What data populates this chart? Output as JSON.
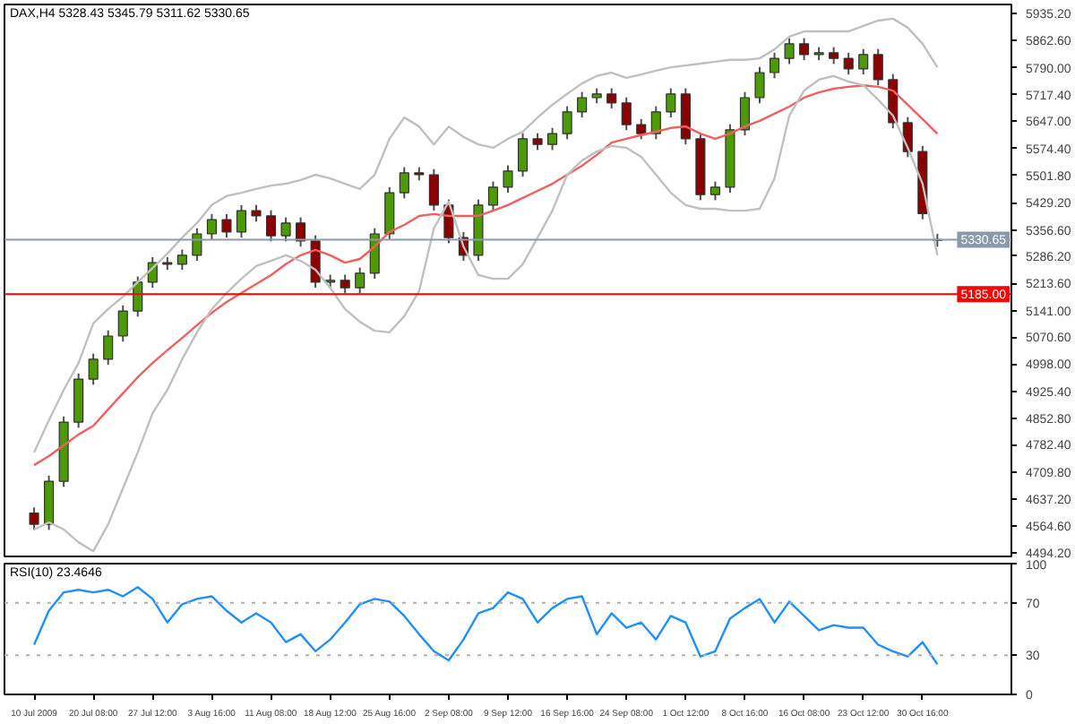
{
  "chart_data": [
    {
      "type": "candlestick",
      "title": "DAX,H4 5328.43 5345.79 5311.62 5330.65",
      "ohlc": [
        [
          4600,
          4615,
          4555,
          4570
        ],
        [
          4570,
          4700,
          4555,
          4685
        ],
        [
          4685,
          4858,
          4670,
          4843
        ],
        [
          4843,
          4973,
          4828,
          4958
        ],
        [
          4958,
          5026,
          4943,
          5011
        ],
        [
          5011,
          5088,
          4996,
          5073
        ],
        [
          5073,
          5155,
          5058,
          5140
        ],
        [
          5140,
          5232,
          5125,
          5217
        ],
        [
          5217,
          5284,
          5202,
          5269
        ],
        [
          5269,
          5284,
          5250,
          5265
        ],
        [
          5265,
          5304,
          5250,
          5289
        ],
        [
          5289,
          5361,
          5274,
          5346
        ],
        [
          5346,
          5399,
          5331,
          5384
        ],
        [
          5384,
          5399,
          5336,
          5351
        ],
        [
          5351,
          5423,
          5336,
          5408
        ],
        [
          5408,
          5423,
          5379,
          5394
        ],
        [
          5394,
          5409,
          5326,
          5341
        ],
        [
          5341,
          5390,
          5326,
          5375
        ],
        [
          5375,
          5390,
          5312,
          5327
        ],
        [
          5327,
          5342,
          5202,
          5217
        ],
        [
          5217,
          5237,
          5202,
          5222
        ],
        [
          5222,
          5237,
          5187,
          5202
        ],
        [
          5202,
          5256,
          5187,
          5241
        ],
        [
          5241,
          5361,
          5226,
          5346
        ],
        [
          5346,
          5471,
          5331,
          5456
        ],
        [
          5456,
          5524,
          5441,
          5509
        ],
        [
          5509,
          5524,
          5489,
          5504
        ],
        [
          5504,
          5519,
          5408,
          5423
        ],
        [
          5423,
          5438,
          5321,
          5336
        ],
        [
          5336,
          5351,
          5274,
          5289
        ],
        [
          5289,
          5438,
          5274,
          5423
        ],
        [
          5423,
          5486,
          5408,
          5471
        ],
        [
          5471,
          5529,
          5456,
          5514
        ],
        [
          5514,
          5615,
          5499,
          5600
        ],
        [
          5600,
          5615,
          5570,
          5585
        ],
        [
          5585,
          5629,
          5570,
          5614
        ],
        [
          5614,
          5687,
          5599,
          5672
        ],
        [
          5672,
          5725,
          5657,
          5710
        ],
        [
          5710,
          5735,
          5695,
          5720
        ],
        [
          5720,
          5735,
          5681,
          5696
        ],
        [
          5696,
          5711,
          5623,
          5638
        ],
        [
          5638,
          5653,
          5599,
          5614
        ],
        [
          5614,
          5687,
          5599,
          5672
        ],
        [
          5672,
          5735,
          5657,
          5720
        ],
        [
          5720,
          5735,
          5585,
          5600
        ],
        [
          5600,
          5615,
          5436,
          5451
        ],
        [
          5451,
          5486,
          5436,
          5471
        ],
        [
          5471,
          5639,
          5456,
          5624
        ],
        [
          5624,
          5725,
          5609,
          5710
        ],
        [
          5710,
          5792,
          5695,
          5777
        ],
        [
          5777,
          5830,
          5762,
          5815
        ],
        [
          5815,
          5869,
          5800,
          5854
        ],
        [
          5854,
          5869,
          5810,
          5825
        ],
        [
          5825,
          5845,
          5810,
          5830
        ],
        [
          5830,
          5845,
          5800,
          5815
        ],
        [
          5815,
          5830,
          5772,
          5787
        ],
        [
          5787,
          5840,
          5772,
          5825
        ],
        [
          5825,
          5840,
          5743,
          5758
        ],
        [
          5758,
          5773,
          5628,
          5643
        ],
        [
          5643,
          5658,
          5551,
          5566
        ],
        [
          5566,
          5581,
          5385,
          5400
        ],
        [
          5328.43,
          5345.79,
          5311.62,
          5330.65
        ]
      ],
      "colors": [
        "#8b0000",
        "#4e9a06",
        "#4e9a06",
        "#4e9a06",
        "#4e9a06",
        "#4e9a06",
        "#4e9a06",
        "#4e9a06",
        "#4e9a06",
        "#8b0000",
        "#4e9a06",
        "#4e9a06",
        "#4e9a06",
        "#8b0000",
        "#4e9a06",
        "#8b0000",
        "#8b0000",
        "#4e9a06",
        "#8b0000",
        "#8b0000",
        "#4e9a06",
        "#8b0000",
        "#4e9a06",
        "#4e9a06",
        "#4e9a06",
        "#4e9a06",
        "#8b0000",
        "#8b0000",
        "#8b0000",
        "#8b0000",
        "#4e9a06",
        "#4e9a06",
        "#4e9a06",
        "#4e9a06",
        "#8b0000",
        "#4e9a06",
        "#4e9a06",
        "#4e9a06",
        "#4e9a06",
        "#8b0000",
        "#8b0000",
        "#8b0000",
        "#4e9a06",
        "#4e9a06",
        "#8b0000",
        "#8b0000",
        "#4e9a06",
        "#4e9a06",
        "#4e9a06",
        "#4e9a06",
        "#4e9a06",
        "#4e9a06",
        "#8b0000",
        "#4e9a06",
        "#8b0000",
        "#8b0000",
        "#4e9a06",
        "#8b0000",
        "#8b0000",
        "#8b0000",
        "#8b0000",
        "#4e9a06"
      ],
      "series": [
        {
          "type": "line",
          "color": "#f06060",
          "values": [
            4728,
            4752,
            4781,
            4810,
            4833,
            4877,
            4920,
            4963,
            5001,
            5035,
            5068,
            5102,
            5135,
            5164,
            5188,
            5212,
            5236,
            5265,
            5289,
            5303,
            5289,
            5269,
            5279,
            5312,
            5351,
            5370,
            5394,
            5399,
            5394,
            5394,
            5394,
            5408,
            5423,
            5442,
            5461,
            5480,
            5504,
            5528,
            5557,
            5590,
            5600,
            5610,
            5619,
            5629,
            5633,
            5614,
            5600,
            5614,
            5633,
            5648,
            5667,
            5686,
            5710,
            5724,
            5734,
            5739,
            5743,
            5739,
            5729,
            5691,
            5653,
            5614
          ]
        },
        {
          "type": "line",
          "color": "#c0c0c0",
          "values": [
            4762,
            4848,
            4929,
            5001,
            5107,
            5145,
            5178,
            5217,
            5255,
            5293,
            5336,
            5375,
            5423,
            5447,
            5456,
            5466,
            5475,
            5480,
            5490,
            5504,
            5494,
            5480,
            5466,
            5504,
            5600,
            5657,
            5633,
            5585,
            5633,
            5605,
            5585,
            5576,
            5600,
            5619,
            5657,
            5691,
            5720,
            5748,
            5768,
            5777,
            5763,
            5772,
            5782,
            5791,
            5796,
            5801,
            5806,
            5811,
            5811,
            5815,
            5839,
            5873,
            5887,
            5887,
            5887,
            5887,
            5902,
            5916,
            5921,
            5897,
            5854,
            5791
          ]
        },
        {
          "type": "line",
          "color": "#c0c0c0",
          "values": [
            4556,
            4575,
            4556,
            4522,
            4498,
            4570,
            4666,
            4762,
            4867,
            4929,
            5011,
            5083,
            5145,
            5188,
            5226,
            5260,
            5274,
            5289,
            5274,
            5250,
            5202,
            5145,
            5111,
            5087,
            5083,
            5126,
            5193,
            5361,
            5432,
            5312,
            5236,
            5226,
            5226,
            5265,
            5336,
            5408,
            5504,
            5542,
            5566,
            5581,
            5576,
            5552,
            5504,
            5456,
            5423,
            5413,
            5413,
            5408,
            5408,
            5413,
            5494,
            5662,
            5729,
            5758,
            5768,
            5753,
            5743,
            5705,
            5662,
            5576,
            5480,
            5289
          ]
        }
      ],
      "ylim": [
        4484,
        5959
      ],
      "yticks": [
        {
          "value": 5935.2,
          "label": "5935.20"
        },
        {
          "value": 5862.6,
          "label": "5862.60"
        },
        {
          "value": 5790.0,
          "label": "5790.00"
        },
        {
          "value": 5717.4,
          "label": "5717.40"
        },
        {
          "value": 5647.0,
          "label": "5647.00"
        },
        {
          "value": 5574.4,
          "label": "5574.40"
        },
        {
          "value": 5501.8,
          "label": "5501.80"
        },
        {
          "value": 5429.2,
          "label": "5429.20"
        },
        {
          "value": 5356.6,
          "label": "5356.60"
        },
        {
          "value": 5286.2,
          "label": "5286.20"
        },
        {
          "value": 5213.6,
          "label": "5213.60"
        },
        {
          "value": 5141.0,
          "label": "5141.00"
        },
        {
          "value": 5070.6,
          "label": "5070.60"
        },
        {
          "value": 4998.0,
          "label": "4998.00"
        },
        {
          "value": 4925.4,
          "label": "4925.40"
        },
        {
          "value": 4852.8,
          "label": "4852.80"
        },
        {
          "value": 4782.4,
          "label": "4782.40"
        },
        {
          "value": 4709.8,
          "label": "4709.80"
        },
        {
          "value": 4637.2,
          "label": "4637.20"
        },
        {
          "value": 4564.6,
          "label": "4564.60"
        },
        {
          "value": 4494.2,
          "label": "4494.20"
        }
      ],
      "ref_lines": [
        {
          "axis": "y",
          "value": 5330.65,
          "label": "5330.65",
          "color": "#8a9aaa"
        },
        {
          "axis": "y",
          "value": 5185,
          "label": "5185.00",
          "color": "#ff0000"
        }
      ],
      "tick_labels": "y"
    },
    {
      "type": "line",
      "title": "RSI(10) 23.4646",
      "categories": [
        "10 Jul 2009",
        null,
        null,
        null,
        "20 Jul 08:00",
        null,
        null,
        null,
        "27 Jul 12:00",
        null,
        null,
        null,
        "3 Aug 16:00",
        null,
        null,
        null,
        "11 Aug 08:00",
        null,
        null,
        null,
        "18 Aug 12:00",
        null,
        null,
        null,
        "25 Aug 16:00",
        null,
        null,
        null,
        "2 Sep 08:00",
        null,
        null,
        null,
        "9 Sep 12:00",
        null,
        null,
        null,
        "16 Sep 16:00",
        null,
        null,
        null,
        "24 Sep 08:00",
        null,
        null,
        null,
        "1 Oct 12:00",
        null,
        null,
        null,
        "8 Oct 16:00",
        null,
        null,
        null,
        "16 Oct 08:00",
        null,
        null,
        null,
        "23 Oct 12:00",
        null,
        null,
        null,
        "30 Oct 16:00",
        null
      ],
      "series": [
        {
          "color": "#1e90ff",
          "values": [
            38,
            64,
            78,
            80,
            78,
            80,
            75,
            82,
            73,
            55,
            69,
            73,
            75,
            64,
            55,
            62,
            55,
            40,
            46,
            33,
            42,
            55,
            69,
            73,
            71,
            60,
            46,
            33,
            26,
            42,
            62,
            66,
            78,
            73,
            55,
            66,
            73,
            75,
            46,
            62,
            51,
            55,
            42,
            60,
            55,
            29,
            33,
            58,
            66,
            73,
            55,
            71,
            60,
            49,
            53,
            51,
            51,
            38,
            33,
            29,
            40,
            23
          ]
        }
      ],
      "ylim": [
        0,
        100
      ],
      "yticks": [
        0,
        30,
        70,
        100
      ],
      "ref_lines": [
        {
          "axis": "y",
          "value": 30,
          "color": "#b0b0b0",
          "line_style": "dotted"
        },
        {
          "axis": "y",
          "value": 70,
          "color": "#b0b0b0",
          "line_style": "dotted"
        }
      ]
    }
  ]
}
